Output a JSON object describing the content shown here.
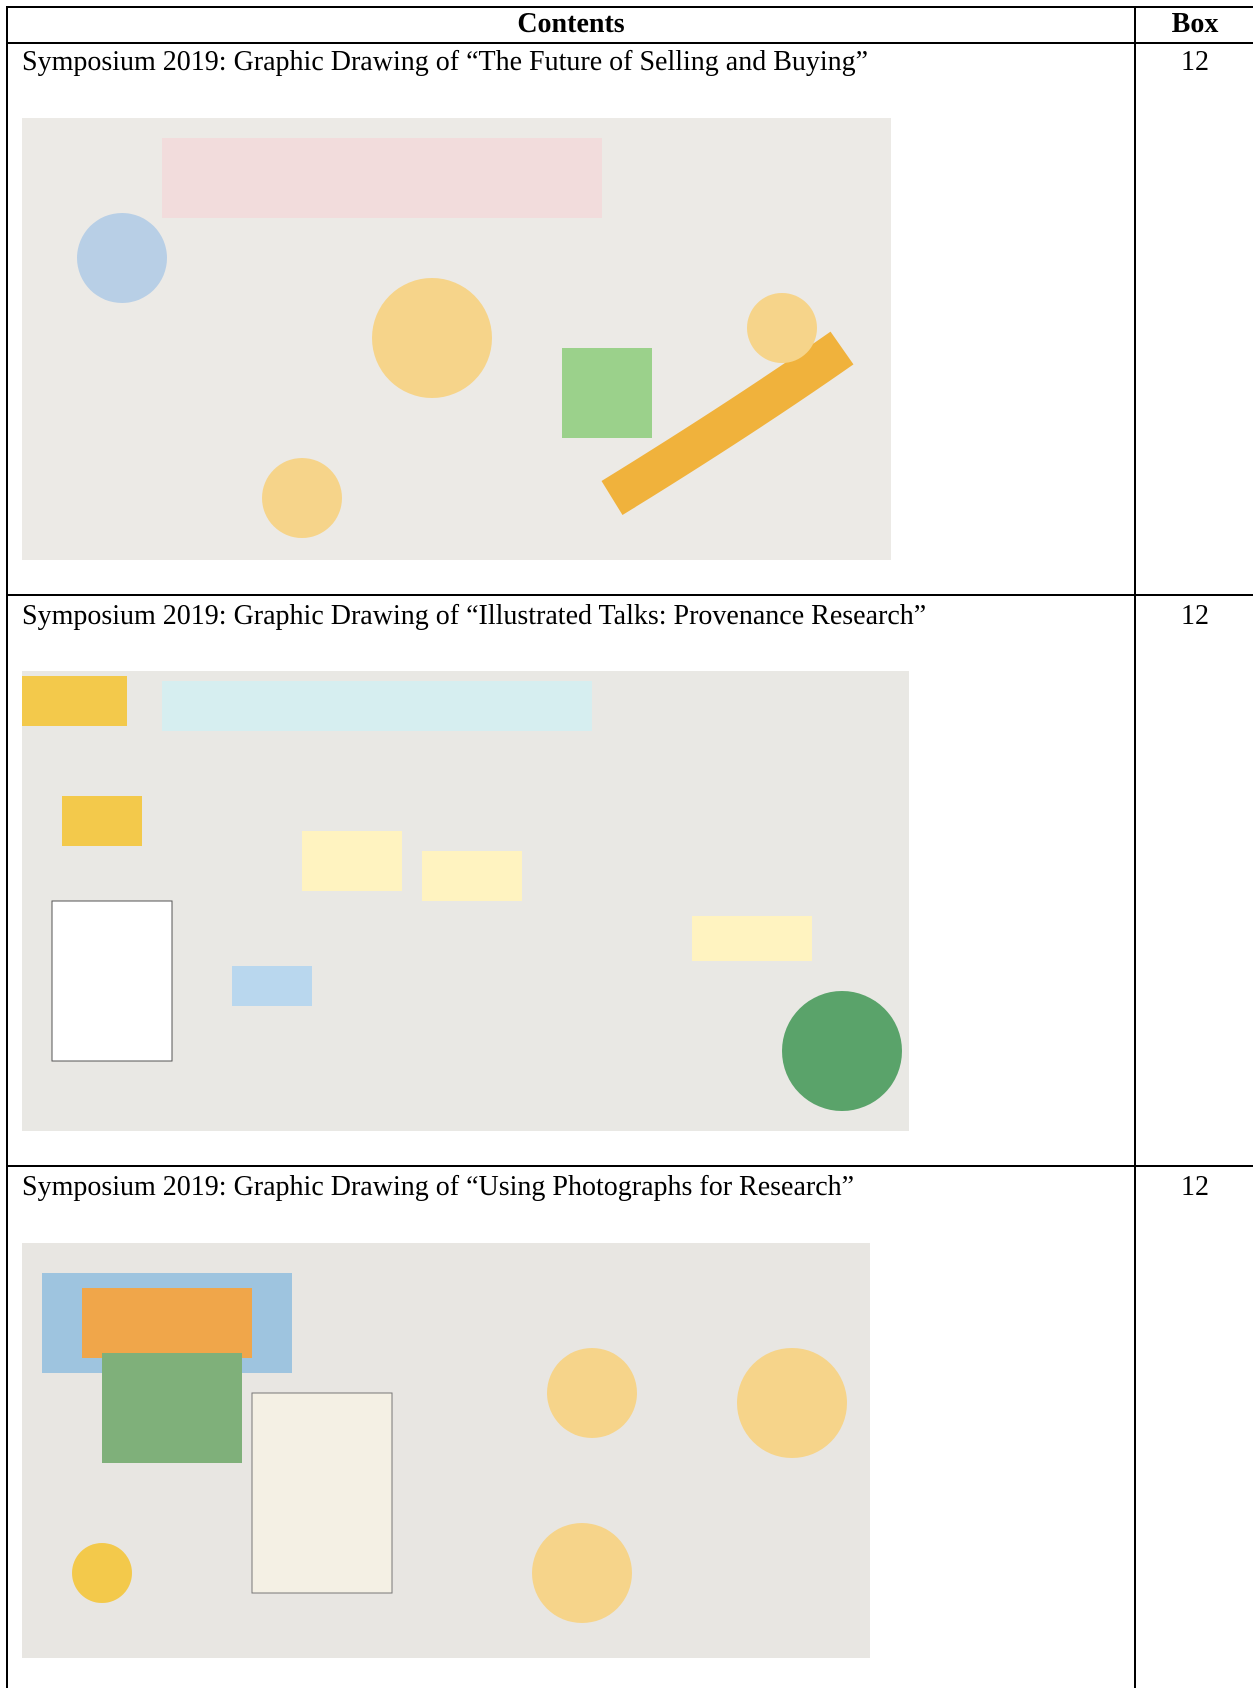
{
  "table": {
    "header": [
      "Contents",
      "Box"
    ],
    "rows": [
      [
        "Symposium 2019: Graphic Drawing of “The Future of Selling and Buying”",
        12
      ],
      [
        "Symposium 2019: Graphic Drawing of “Illustrated Talks: Provenance Research”",
        12
      ],
      [
        "Symposium 2019: Graphic Drawing of “Using Photographs for Research”",
        12
      ]
    ]
  }
}
